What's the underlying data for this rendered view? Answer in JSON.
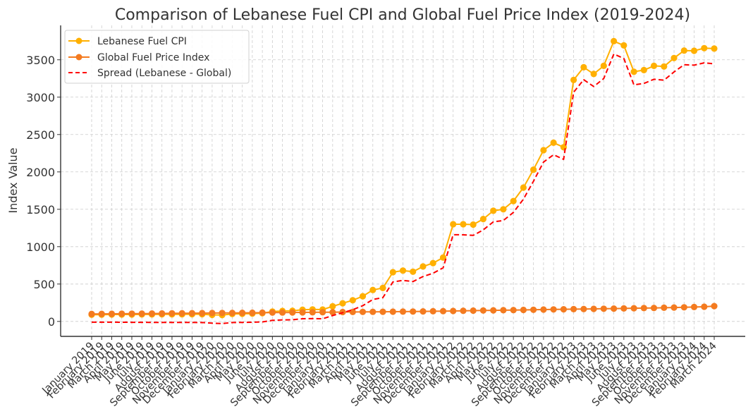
{
  "chart_data": {
    "type": "line",
    "title": "Comparison of Lebanese Fuel CPI and Global Fuel Price Index (2019-2024)",
    "xlabel": "",
    "ylabel": "Index Value",
    "ylim": [
      -200,
      3960
    ],
    "yticks": [
      0,
      500,
      1000,
      1500,
      2000,
      2500,
      3000,
      3500
    ],
    "grid": true,
    "legend_position": "top-left",
    "x": [
      "January 2019",
      "February 2019",
      "March 2019",
      "April 2019",
      "May 2019",
      "June 2019",
      "July 2019",
      "August 2019",
      "September 2019",
      "October 2019",
      "November 2019",
      "December 2019",
      "January 2020",
      "February 2020",
      "March 2020",
      "April 2020",
      "May 2020",
      "June 2020",
      "July 2020",
      "August 2020",
      "September 2020",
      "October 2020",
      "November 2020",
      "December 2020",
      "January 2021",
      "February 2021",
      "March 2021",
      "April 2021",
      "May 2021",
      "June 2021",
      "July 2021",
      "August 2021",
      "September 2021",
      "October 2021",
      "November 2021",
      "December 2021",
      "January 2022",
      "February 2022",
      "March 2022",
      "April 2022",
      "May 2022",
      "June 2022",
      "July 2022",
      "August 2022",
      "September 2022",
      "October 2022",
      "November 2022",
      "December 2022",
      "January 2023",
      "February 2023",
      "March 2023",
      "April 2023",
      "May 2023",
      "June 2023",
      "July 2023",
      "August 2023",
      "September 2023",
      "October 2023",
      "November 2023",
      "December 2023",
      "January 2024",
      "February 2024",
      "March 2024"
    ],
    "series": [
      {
        "name": "Lebanese Fuel CPI",
        "color": "#FFB000",
        "style": "solid-marker",
        "values": [
          90,
          91,
          92,
          92,
          92,
          93,
          93,
          94,
          94,
          95,
          96,
          96,
          88,
          85,
          99,
          102,
          105,
          110,
          132,
          140,
          142,
          157,
          160,
          158,
          202,
          242,
          283,
          337,
          421,
          447,
          658,
          680,
          665,
          735,
          780,
          855,
          1300,
          1300,
          1295,
          1370,
          1480,
          1500,
          1610,
          1790,
          2030,
          2290,
          2390,
          2330,
          3230,
          3400,
          3310,
          3419,
          3749,
          3692,
          3340,
          3362,
          3419,
          3410,
          3523,
          3623,
          3620,
          3655,
          3650
        ]
      },
      {
        "name": "Global Fuel Price Index",
        "color": "#F47B20",
        "style": "solid-marker",
        "values": [
          100,
          101,
          102,
          103,
          104,
          105,
          106,
          107,
          108,
          109,
          110,
          111,
          112,
          113,
          114,
          115,
          116,
          117,
          118,
          119,
          120,
          121,
          122,
          123,
          124,
          125,
          126,
          127,
          128,
          129,
          130,
          131,
          132,
          134,
          136,
          138,
          140,
          142,
          144,
          146,
          148,
          150,
          152,
          154,
          156,
          158,
          160,
          162,
          164,
          166,
          168,
          170,
          172,
          174,
          176,
          178,
          180,
          183,
          186,
          189,
          192,
          196,
          205
        ]
      },
      {
        "name": "Spread (Lebanese - Global)",
        "color": "#FF0000",
        "style": "dashed",
        "values": [
          -10,
          -10,
          -10,
          -11,
          -12,
          -12,
          -13,
          -13,
          -14,
          -14,
          -14,
          -15,
          -24,
          -28,
          -15,
          -13,
          -11,
          -7,
          14,
          21,
          22,
          36,
          38,
          35,
          78,
          117,
          157,
          210,
          293,
          318,
          528,
          549,
          533,
          601,
          644,
          717,
          1160,
          1158,
          1151,
          1224,
          1332,
          1350,
          1458,
          1636,
          1874,
          2132,
          2230,
          2168,
          3066,
          3234,
          3142,
          3249,
          3577,
          3518,
          3164,
          3184,
          3239,
          3227,
          3337,
          3434,
          3428,
          3459,
          3445
        ]
      }
    ]
  }
}
